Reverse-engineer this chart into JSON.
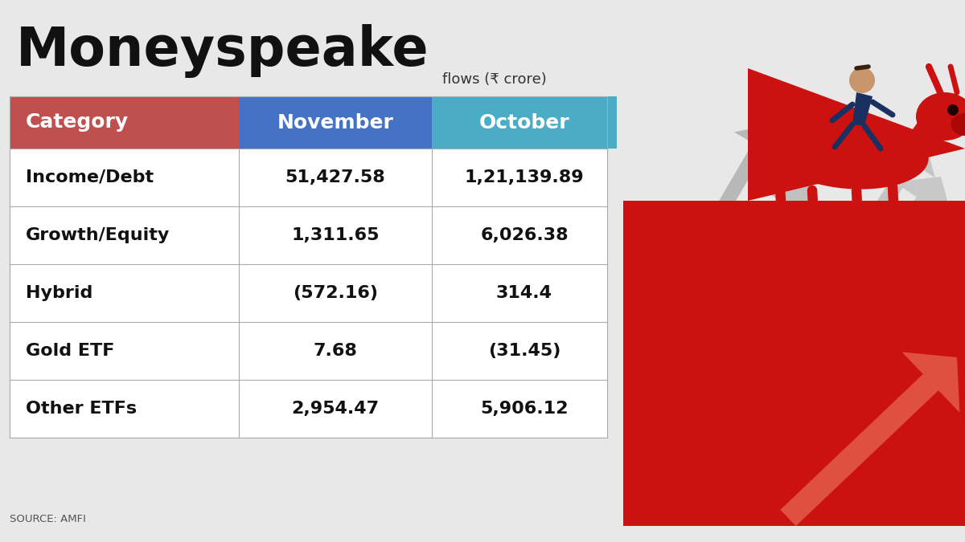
{
  "title": "Moneyspeake",
  "subtitle": "flows (₹ crore)",
  "source": "SOURCE: AMFI",
  "header_col1": "Category",
  "header_col2": "November",
  "header_col3": "October",
  "header_color_col1": "#c0504d",
  "header_color_col2": "#4472c4",
  "header_color_col3": "#4bacc6",
  "rows": [
    [
      "Income/Debt",
      "51,427.58",
      "1,21,139.89"
    ],
    [
      "Growth/Equity",
      "1,311.65",
      "6,026.38"
    ],
    [
      "Hybrid",
      "(572.16)",
      "314.4"
    ],
    [
      "Gold ETF",
      "7.68",
      "(31.45)"
    ],
    [
      "Other ETFs",
      "2,954.47",
      "5,906.12"
    ]
  ],
  "bg_color": "#e8e8e8",
  "table_bg": "#ffffff",
  "row_line_color": "#aaaaaa",
  "title_fontsize": 48,
  "header_fontsize": 17,
  "cell_fontsize": 16,
  "subtitle_fontsize": 13,
  "red_arrow": "#cc1111",
  "light_red_arrow": "#e87060",
  "white_arrow": "#c8c8c8",
  "bull_color": "#cc1111",
  "person_color": "#1a3060",
  "person_skin": "#c8956c"
}
